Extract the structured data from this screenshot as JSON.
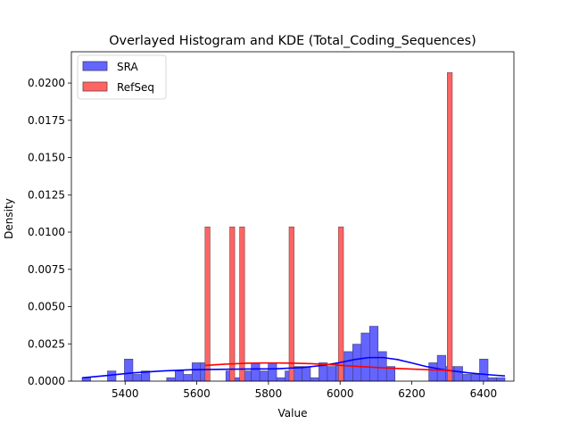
{
  "chart_data": {
    "type": "bar",
    "title": "Overlayed Histogram and KDE (Total_Coding_Sequences)",
    "xlabel": "Value",
    "ylabel": "Density",
    "xlim": [
      5250,
      6485
    ],
    "ylim": [
      0,
      0.0221
    ],
    "xticks": [
      5400,
      5600,
      5800,
      6000,
      6200,
      6400
    ],
    "xtick_labels": [
      "5400",
      "5600",
      "5800",
      "6000",
      "6200",
      "6400"
    ],
    "yticks": [
      0,
      0.0025,
      0.005,
      0.0075,
      0.01,
      0.0125,
      0.015,
      0.0175,
      0.02
    ],
    "ytick_labels": [
      "0.0000",
      "0.0025",
      "0.0050",
      "0.0075",
      "0.0100",
      "0.0125",
      "0.0150",
      "0.0175",
      "0.0200"
    ],
    "grid": false,
    "legend_position": "top-left",
    "legend": [
      {
        "label": "SRA",
        "color": "#6464ff"
      },
      {
        "label": "RefSeq",
        "color": "#ff6464"
      }
    ],
    "series": [
      {
        "name": "SRA",
        "kind": "histogram",
        "color": "#6464ff",
        "edge_color": "#3c3c78",
        "kde_color": "#0000ff",
        "bin_edges": [
          5280.0,
          5303.6,
          5327.2,
          5350.8,
          5374.4,
          5398.0,
          5421.6,
          5445.2,
          5468.8,
          5492.4,
          5516.0,
          5539.6,
          5563.2,
          5586.8,
          5610.4,
          5634.0,
          5657.6,
          5681.2,
          5704.8,
          5728.4,
          5752.0,
          5775.6,
          5799.2,
          5822.8,
          5846.4,
          5870.0,
          5893.6,
          5917.2,
          5940.8,
          5964.4,
          5988.0,
          6011.6,
          6035.2,
          6058.8,
          6082.4,
          6106.0,
          6129.6,
          6153.2,
          6176.8,
          6200.4,
          6224.0,
          6247.6,
          6271.2,
          6294.8,
          6318.4,
          6342.0,
          6365.6,
          6389.2,
          6412.8,
          6436.4,
          6460.0
        ],
        "values": [
          0.00023,
          0.0,
          0.0,
          0.00068,
          0.0,
          0.00148,
          0.00045,
          0.00068,
          0.0,
          0.0,
          0.00023,
          0.00068,
          0.00045,
          0.00123,
          0.00123,
          0.0,
          0.0,
          0.00068,
          0.00023,
          0.00068,
          0.00123,
          0.00068,
          0.00123,
          0.00023,
          0.00068,
          0.00098,
          0.00098,
          0.00023,
          0.00123,
          0.00098,
          0.00123,
          0.00198,
          0.00248,
          0.00323,
          0.00368,
          0.00198,
          0.00098,
          0.0,
          0.0,
          0.0,
          0.0,
          0.00123,
          0.00173,
          0.00098,
          0.00098,
          0.00045,
          0.00045,
          0.00148,
          0.00023,
          0.00023
        ],
        "kde": {
          "x": [
            5280,
            5350,
            5420,
            5500,
            5580,
            5660,
            5740,
            5820,
            5900,
            5960,
            6000,
            6040,
            6080,
            6120,
            6160,
            6200,
            6240,
            6300,
            6360,
            6420,
            6460
          ],
          "y": [
            0.00022,
            0.00038,
            0.00055,
            0.00068,
            0.00076,
            0.00079,
            0.00081,
            0.00083,
            0.00092,
            0.00108,
            0.00125,
            0.00145,
            0.00158,
            0.00158,
            0.00145,
            0.00122,
            0.00098,
            0.00072,
            0.00055,
            0.00042,
            0.00035
          ]
        }
      },
      {
        "name": "RefSeq",
        "kind": "histogram",
        "color": "#ff6464",
        "edge_color": "#783c3c",
        "kde_color": "#ff0000",
        "bin_edges": [
          5623.0,
          5636.8,
          5650.6,
          5664.4,
          5678.2,
          5692.0,
          5705.8,
          5719.6,
          5733.4,
          5747.2,
          5761.0,
          5774.8,
          5788.6,
          5802.4,
          5816.2,
          5830.0,
          5843.8,
          5857.6,
          5871.4,
          5885.2,
          5899.0,
          5912.8,
          5926.6,
          5940.4,
          5954.2,
          5968.0,
          5981.8,
          5995.6,
          6009.4,
          6023.2,
          6037.0,
          6050.8,
          6064.6,
          6078.4,
          6092.2,
          6106.0,
          6119.8,
          6133.6,
          6147.4,
          6161.2,
          6175.0,
          6188.8,
          6202.6,
          6216.4,
          6230.2,
          6244.0,
          6257.8,
          6271.6,
          6285.4,
          6299.2,
          6313.0
        ],
        "values": [
          0.01035,
          0.0,
          0.0,
          0.0,
          0.0,
          0.01035,
          0.0,
          0.01035,
          0.0,
          0.0,
          0.0,
          0.0,
          0.0,
          0.0,
          0.0,
          0.0,
          0.0,
          0.01035,
          0.0,
          0.0,
          0.0,
          0.0,
          0.0,
          0.0,
          0.0,
          0.0,
          0.0,
          0.01035,
          0.0,
          0.0,
          0.0,
          0.0,
          0.0,
          0.0,
          0.0,
          0.0,
          0.0,
          0.0,
          0.0,
          0.0,
          0.0,
          0.0,
          0.0,
          0.0,
          0.0,
          0.0,
          0.0,
          0.0,
          0.0,
          0.0207
        ],
        "kde": {
          "x": [
            5623,
            5680,
            5740,
            5800,
            5860,
            5920,
            5980,
            6040,
            6100,
            6160,
            6220,
            6280,
            6313
          ],
          "y": [
            0.00105,
            0.00114,
            0.0012,
            0.00122,
            0.00121,
            0.00117,
            0.00109,
            0.001,
            0.00092,
            0.00085,
            0.00079,
            0.00074,
            0.00071
          ]
        }
      }
    ]
  }
}
